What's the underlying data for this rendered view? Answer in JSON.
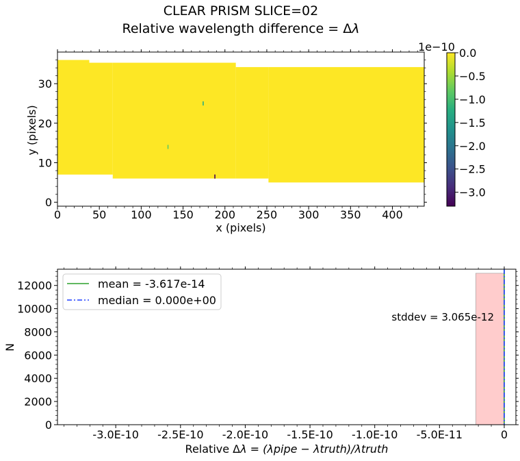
{
  "figure": {
    "title_line1": "CLEAR   PRISM   SLICE=02",
    "title_line2_prefix": "Relative wavelength difference = Δ",
    "title_line2_symbol": "λ"
  },
  "chart_data": [
    {
      "type": "heatmap",
      "xlabel": "x (pixels)",
      "ylabel": "y (pixels)",
      "xlim": [
        0,
        438
      ],
      "ylim": [
        -1,
        38
      ],
      "x_ticks": [
        0,
        50,
        100,
        150,
        200,
        250,
        300,
        350,
        400
      ],
      "x_tick_labels": [
        "0",
        "50",
        "100",
        "150",
        "200",
        "250",
        "300",
        "350",
        "400"
      ],
      "y_ticks": [
        0,
        10,
        20,
        30
      ],
      "y_tick_labels": [
        "0",
        "10",
        "20",
        "30"
      ],
      "fill_value": 0.0,
      "regions": [
        {
          "x": [
            0,
            38
          ],
          "y": [
            7,
            36
          ]
        },
        {
          "x": [
            38,
            66
          ],
          "y": [
            7,
            35.3
          ]
        },
        {
          "x": [
            66,
            213
          ],
          "y": [
            6,
            35.3
          ]
        },
        {
          "x": [
            213,
            252
          ],
          "y": [
            6,
            34.2
          ]
        },
        {
          "x": [
            252,
            438
          ],
          "y": [
            5,
            34.2
          ]
        }
      ],
      "outliers": [
        {
          "x": 174,
          "y": 25,
          "value": -1.4e-10
        },
        {
          "x": 132,
          "y": 14,
          "value": -7e-11
        },
        {
          "x": 188,
          "y": 6.5,
          "value": -3.1e-10
        }
      ],
      "colorbar": {
        "colormap": "viridis",
        "range": [
          -3.3e-10,
          0.0
        ],
        "offset_text": "1e−10",
        "ticks": [
          0.0,
          -0.5,
          -1.0,
          -1.5,
          -2.0,
          -2.5,
          -3.0
        ],
        "tick_labels": [
          "0.0",
          "−0.5",
          "−1.0",
          "−1.5",
          "−2.0",
          "−2.5",
          "−3.0"
        ]
      }
    },
    {
      "type": "histogram",
      "xlabel_prefix": "Relative Δ",
      "xlabel_math": "λ = (λpipe − λtruth)/λtruth",
      "ylabel": "N",
      "xlim": [
        -3.45e-10,
        9e-12
      ],
      "ylim": [
        0,
        13400
      ],
      "x_ticks": [
        -3e-10,
        -2.5e-10,
        -2e-10,
        -1.5e-10,
        -1e-10,
        -5e-11,
        0
      ],
      "x_tick_labels": [
        "-3.0E-10",
        "-2.5E-10",
        "-2.0E-10",
        "-1.5E-10",
        "-1.0E-10",
        "-5.0E-11",
        "0"
      ],
      "y_ticks": [
        0,
        2000,
        4000,
        6000,
        8000,
        10000,
        12000
      ],
      "y_tick_labels": [
        "0",
        "2000",
        "4000",
        "6000",
        "8000",
        "10000",
        "12000"
      ],
      "bins": [
        {
          "x0": -2.2e-11,
          "x1": 0.0,
          "count": 13050
        }
      ],
      "lines": [
        {
          "name": "mean = -3.617e-14",
          "x": -3.617e-14,
          "style": "solid",
          "color": "#2ca02c"
        },
        {
          "name": "median = 0.000e+00",
          "x": 0.0,
          "style": "dashdot",
          "color": "#1f3fff"
        }
      ],
      "annotation": "stddev = 3.065e-12",
      "legend_position": "upper-left",
      "bar_color": "#ffcccc"
    }
  ]
}
